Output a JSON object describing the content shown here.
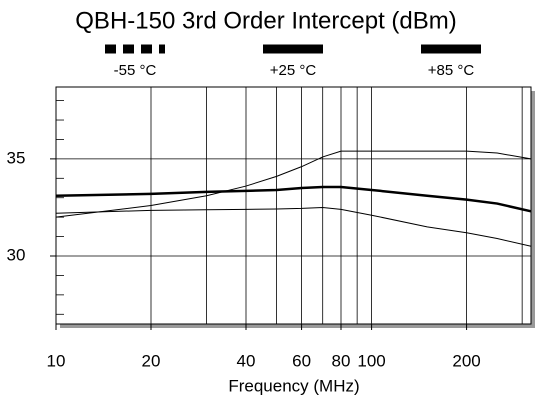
{
  "chart_data": {
    "type": "line",
    "title": "QBH-150 3rd Order Intercept (dBm)",
    "x_label": "Frequency (MHz)",
    "x": [
      10,
      20,
      30,
      40,
      50,
      60,
      70,
      80,
      100,
      150,
      200,
      250,
      320
    ],
    "series": [
      {
        "name": "-55 °C",
        "color": "#000000",
        "line_width": 1,
        "legend_dash": true,
        "values": [
          32.2,
          32.35,
          32.38,
          32.4,
          32.42,
          32.45,
          32.5,
          32.4,
          32.1,
          31.5,
          31.2,
          30.9,
          30.5
        ]
      },
      {
        "name": "+25 °C",
        "color": "#000000",
        "line_width": 2.5,
        "legend_dash": false,
        "values": [
          33.1,
          33.2,
          33.3,
          33.35,
          33.4,
          33.5,
          33.55,
          33.55,
          33.4,
          33.1,
          32.9,
          32.7,
          32.3
        ]
      },
      {
        "name": "+85 °C",
        "color": "#000000",
        "line_width": 1,
        "legend_dash": false,
        "values": [
          32.0,
          32.6,
          33.1,
          33.6,
          34.1,
          34.6,
          35.1,
          35.4,
          35.4,
          35.4,
          35.4,
          35.3,
          35.0
        ]
      }
    ],
    "xlim": [
      10,
      320
    ],
    "xscale": "log",
    "xticks": [
      10,
      20,
      40,
      60,
      80,
      100,
      200
    ],
    "xgrid": [
      20,
      30,
      40,
      50,
      60,
      70,
      80,
      90,
      100,
      200,
      300
    ],
    "ylim": [
      26.5,
      38.7
    ],
    "yticks": [
      30,
      35
    ],
    "yminor_ticks": [
      27,
      28,
      29,
      31,
      32,
      33,
      34,
      36,
      37,
      38
    ],
    "grid": true
  }
}
